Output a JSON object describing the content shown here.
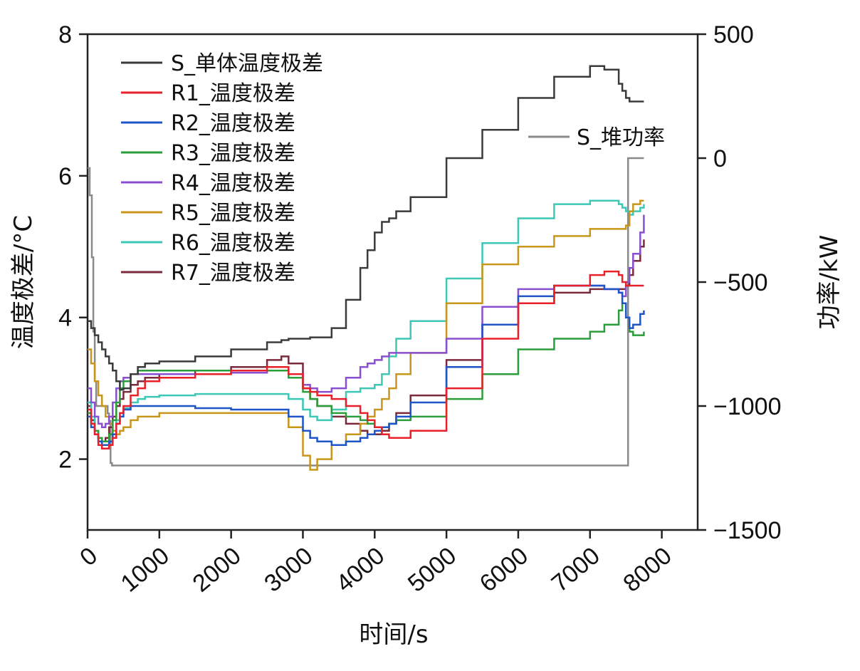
{
  "chart_data": {
    "type": "line",
    "title": "",
    "xlabel": "时间/s",
    "ylabel": "温度极差/°C",
    "y2label": "功率/kW",
    "xlim": [
      0,
      8500
    ],
    "ylim": [
      1,
      8
    ],
    "y2lim": [
      -1500,
      500
    ],
    "xticks": [
      0,
      1000,
      2000,
      3000,
      4000,
      5000,
      6000,
      7000,
      8000
    ],
    "yticks": [
      2,
      4,
      6,
      8
    ],
    "y2ticks": [
      500,
      0,
      -500,
      -1000,
      -1500
    ],
    "xtick_labels": [
      "0",
      "1000",
      "2000",
      "3000",
      "4000",
      "5000",
      "6000",
      "7000",
      "8000"
    ],
    "ytick_labels": [
      "2",
      "4",
      "6",
      "8"
    ],
    "y2tick_labels": [
      "500",
      "0",
      "−500",
      "−1000",
      "−1500"
    ],
    "grid": false,
    "legend_placement": "top-left",
    "x": [
      0,
      50,
      100,
      150,
      200,
      250,
      300,
      350,
      400,
      450,
      500,
      600,
      700,
      800,
      1000,
      1500,
      2000,
      2500,
      2700,
      2800,
      3000,
      3100,
      3200,
      3400,
      3600,
      3800,
      3900,
      4000,
      4100,
      4200,
      4300,
      4500,
      5000,
      5500,
      6000,
      6500,
      7000,
      7200,
      7400,
      7450,
      7500,
      7550,
      7600,
      7700,
      7750
    ],
    "series": [
      {
        "name": "S_单体温度极差",
        "color": "#3a3a3a",
        "axis": "left",
        "values": [
          3.95,
          3.85,
          3.75,
          3.65,
          3.55,
          3.45,
          3.35,
          3.25,
          3.1,
          2.98,
          3.0,
          3.2,
          3.3,
          3.35,
          3.38,
          3.45,
          3.55,
          3.65,
          3.68,
          3.7,
          3.7,
          3.72,
          3.72,
          3.85,
          4.25,
          4.7,
          4.95,
          5.2,
          5.35,
          5.4,
          5.5,
          5.7,
          6.25,
          6.65,
          7.1,
          7.4,
          7.55,
          7.5,
          7.3,
          7.2,
          7.1,
          7.05,
          7.05,
          7.05,
          7.05
        ]
      },
      {
        "name": "R1_温度极差",
        "color": "#e8202a",
        "axis": "left",
        "values": [
          2.7,
          2.5,
          2.35,
          2.2,
          2.15,
          2.15,
          2.2,
          2.3,
          2.5,
          2.65,
          2.75,
          2.9,
          3.0,
          3.1,
          3.15,
          3.2,
          3.25,
          3.3,
          3.3,
          3.2,
          3.0,
          2.95,
          2.9,
          2.85,
          2.75,
          2.65,
          2.55,
          2.45,
          2.35,
          2.3,
          2.3,
          2.4,
          3.0,
          3.7,
          4.2,
          4.45,
          4.6,
          4.65,
          4.6,
          4.5,
          4.45,
          4.45,
          4.45,
          4.45,
          4.45
        ]
      },
      {
        "name": "R2_温度极差",
        "color": "#1f55c8",
        "axis": "left",
        "values": [
          2.6,
          2.45,
          2.35,
          2.25,
          2.2,
          2.2,
          2.25,
          2.35,
          2.5,
          2.6,
          2.7,
          2.75,
          2.75,
          2.75,
          2.75,
          2.72,
          2.7,
          2.7,
          2.7,
          2.6,
          2.4,
          2.3,
          2.25,
          2.2,
          2.25,
          2.3,
          2.35,
          2.4,
          2.45,
          2.5,
          2.6,
          2.8,
          3.3,
          3.9,
          4.3,
          4.45,
          4.45,
          4.4,
          4.35,
          4.2,
          4.0,
          3.85,
          3.9,
          4.05,
          4.1
        ]
      },
      {
        "name": "R3_温度极差",
        "color": "#2a9e3a",
        "axis": "left",
        "values": [
          2.65,
          2.5,
          2.4,
          2.3,
          2.25,
          2.25,
          2.35,
          2.55,
          2.8,
          3.0,
          3.1,
          3.2,
          3.25,
          3.25,
          3.25,
          3.25,
          3.25,
          3.25,
          3.25,
          3.15,
          2.95,
          2.85,
          2.75,
          2.65,
          2.6,
          2.55,
          2.5,
          2.45,
          2.45,
          2.5,
          2.55,
          2.6,
          2.85,
          3.2,
          3.55,
          3.7,
          3.8,
          3.9,
          4.1,
          4.2,
          4.0,
          3.8,
          3.75,
          3.75,
          3.8
        ]
      },
      {
        "name": "R4_温度极差",
        "color": "#8a4fd0",
        "axis": "left",
        "values": [
          3.0,
          2.8,
          2.6,
          2.5,
          2.45,
          2.5,
          2.6,
          2.8,
          3.0,
          3.1,
          3.15,
          3.2,
          3.2,
          3.2,
          3.2,
          3.2,
          3.22,
          3.25,
          3.25,
          3.2,
          3.05,
          3.0,
          2.95,
          3.0,
          3.15,
          3.3,
          3.35,
          3.4,
          3.45,
          3.5,
          3.5,
          3.5,
          3.7,
          4.15,
          4.4,
          4.45,
          4.45,
          4.4,
          4.35,
          4.3,
          4.5,
          4.7,
          4.9,
          5.2,
          5.45
        ]
      },
      {
        "name": "R5_温度极差",
        "color": "#c8961a",
        "axis": "left",
        "values": [
          3.55,
          3.35,
          3.1,
          2.9,
          2.75,
          2.6,
          2.5,
          2.4,
          2.35,
          2.4,
          2.45,
          2.55,
          2.6,
          2.6,
          2.65,
          2.65,
          2.65,
          2.65,
          2.65,
          2.45,
          2.05,
          1.85,
          2.0,
          2.2,
          2.35,
          2.5,
          2.6,
          2.7,
          2.85,
          3.0,
          3.2,
          3.5,
          4.2,
          4.75,
          5.0,
          5.15,
          5.25,
          5.25,
          5.25,
          5.25,
          5.3,
          5.5,
          5.6,
          5.65,
          5.65
        ]
      },
      {
        "name": "R6_温度极差",
        "color": "#3cc8b4",
        "axis": "left",
        "values": [
          2.8,
          2.6,
          2.4,
          2.25,
          2.15,
          2.15,
          2.25,
          2.4,
          2.55,
          2.65,
          2.72,
          2.8,
          2.85,
          2.88,
          2.9,
          2.92,
          2.92,
          2.92,
          2.92,
          2.85,
          2.7,
          2.6,
          2.55,
          2.7,
          2.95,
          3.0,
          3.0,
          3.05,
          3.2,
          3.45,
          3.7,
          3.95,
          4.55,
          5.05,
          5.4,
          5.6,
          5.65,
          5.65,
          5.6,
          5.55,
          5.5,
          5.45,
          5.5,
          5.55,
          5.6
        ]
      },
      {
        "name": "R7_温度极差",
        "color": "#7a2a3a",
        "axis": "left",
        "values": [
          2.75,
          2.55,
          2.4,
          2.3,
          2.25,
          2.3,
          2.45,
          2.6,
          2.75,
          2.85,
          2.95,
          3.05,
          3.1,
          3.15,
          3.2,
          3.25,
          3.3,
          3.4,
          3.45,
          3.35,
          3.0,
          2.85,
          2.75,
          2.6,
          2.5,
          2.4,
          2.35,
          2.35,
          2.4,
          2.5,
          2.65,
          2.9,
          3.4,
          3.9,
          4.2,
          4.35,
          4.4,
          4.4,
          4.4,
          4.4,
          4.45,
          4.6,
          4.8,
          5.0,
          5.1
        ]
      }
    ],
    "power_series": {
      "name": "S_堆功率",
      "color": "#8a8a8a",
      "axis": "right",
      "x": [
        0,
        30,
        60,
        80,
        100,
        120,
        150,
        200,
        250,
        280,
        300,
        320,
        340,
        7520,
        7530,
        7750
      ],
      "values": [
        -40,
        -150,
        -400,
        -700,
        -900,
        -1000,
        -1000,
        -1000,
        -1000,
        -1030,
        -1060,
        -1230,
        -1240,
        -1240,
        0,
        0
      ]
    }
  }
}
